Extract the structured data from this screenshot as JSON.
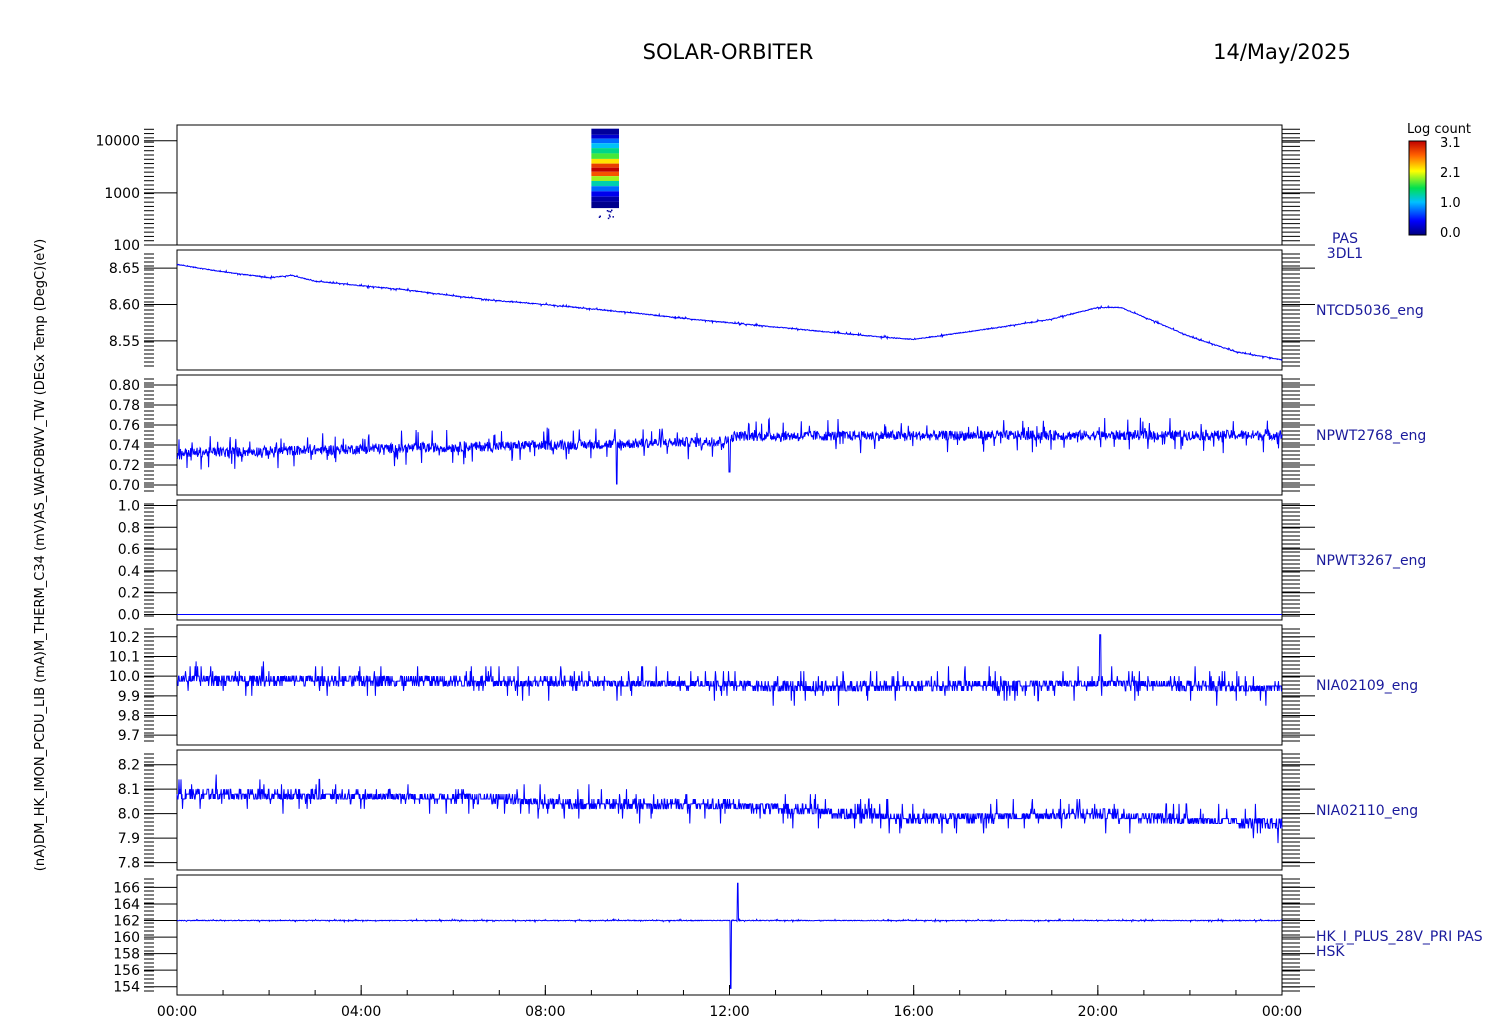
{
  "header": {
    "title": "SOLAR-ORBITER",
    "date": "14/May/2025"
  },
  "colorbar": {
    "title": "Log count",
    "ticks": [
      "3.1",
      "2.1",
      "1.0",
      "0.0"
    ],
    "range": [
      0.0,
      3.1
    ]
  },
  "left_axis_label": "(nA)DM_HK_IMON_PCDU_LIB (mA)M_THERM_C34 (mV)AS_WAFOBWV_TW (DEGx Temp (DegC)(eV)",
  "x_ticks": [
    "00:00",
    "04:00",
    "08:00",
    "12:00",
    "16:00",
    "20:00",
    "00:00"
  ],
  "colors": {
    "trace": "#0000ff",
    "label": "#1a1a9c",
    "axis": "#000000"
  },
  "chart_data": [
    {
      "type": "heatmap",
      "panel": "pas",
      "side_label": [
        "PAS",
        "3DL1"
      ],
      "yscale": "log",
      "ylim": [
        100,
        20000
      ],
      "y_ticks": [
        "10000",
        "1000",
        "100"
      ],
      "y_tick_values": [
        10000,
        1000,
        100
      ],
      "x_hours": [
        9.0,
        9.6
      ],
      "bins": [
        {
          "e": 14000,
          "v": 0.1
        },
        {
          "e": 12000,
          "v": 0.3
        },
        {
          "e": 10000,
          "v": 0.8
        },
        {
          "e": 8000,
          "v": 1.1
        },
        {
          "e": 6500,
          "v": 1.4
        },
        {
          "e": 5000,
          "v": 1.7
        },
        {
          "e": 4000,
          "v": 2.2
        },
        {
          "e": 3300,
          "v": 2.8
        },
        {
          "e": 2800,
          "v": 3.1
        },
        {
          "e": 2300,
          "v": 2.7
        },
        {
          "e": 1900,
          "v": 1.9
        },
        {
          "e": 1500,
          "v": 1.3
        },
        {
          "e": 1200,
          "v": 0.8
        },
        {
          "e": 950,
          "v": 0.4
        },
        {
          "e": 750,
          "v": 0.15
        },
        {
          "e": 600,
          "v": 0.05
        }
      ]
    },
    {
      "type": "line",
      "panel": "ntcd",
      "side_label": [
        "NTCD5036_eng"
      ],
      "ylim": [
        8.51,
        8.675
      ],
      "y_ticks": [
        "8.65",
        "8.60",
        "8.55"
      ],
      "y_tick_values": [
        8.65,
        8.6,
        8.55
      ],
      "x": [
        0,
        1,
        2,
        2.5,
        3,
        4,
        5,
        6,
        7,
        8,
        9,
        10,
        11,
        12,
        13,
        14,
        15,
        16,
        17,
        18,
        19,
        20,
        20.5,
        21,
        22,
        23,
        24
      ],
      "y": [
        8.655,
        8.645,
        8.637,
        8.64,
        8.632,
        8.626,
        8.62,
        8.612,
        8.605,
        8.6,
        8.594,
        8.588,
        8.581,
        8.575,
        8.569,
        8.563,
        8.557,
        8.552,
        8.561,
        8.57,
        8.58,
        8.596,
        8.596,
        8.583,
        8.556,
        8.535,
        8.524
      ],
      "noise": 0.002
    },
    {
      "type": "line",
      "panel": "npwt2768",
      "side_label": [
        "NPWT2768_eng"
      ],
      "ylim": [
        0.69,
        0.81
      ],
      "y_ticks": [
        "0.80",
        "0.78",
        "0.76",
        "0.74",
        "0.72",
        "0.70"
      ],
      "y_tick_values": [
        0.8,
        0.78,
        0.76,
        0.74,
        0.72,
        0.7
      ],
      "x": [
        0,
        5,
        9.5,
        12,
        12.1,
        24
      ],
      "y": [
        0.732,
        0.737,
        0.741,
        0.744,
        0.749,
        0.75
      ],
      "noise": 0.018,
      "dips": [
        {
          "x": 9.55,
          "y": 0.701
        },
        {
          "x": 12.0,
          "y": 0.713
        }
      ]
    },
    {
      "type": "line",
      "panel": "npwt3267",
      "side_label": [
        "NPWT3267_eng"
      ],
      "ylim": [
        -0.05,
        1.05
      ],
      "y_ticks": [
        "1.0",
        "0.8",
        "0.6",
        "0.4",
        "0.2",
        "0.0"
      ],
      "y_tick_values": [
        1.0,
        0.8,
        0.6,
        0.4,
        0.2,
        0.0
      ],
      "x": [
        0,
        24
      ],
      "y": [
        0.0,
        0.0
      ],
      "noise": 0.0
    },
    {
      "type": "line",
      "panel": "nia02109",
      "side_label": [
        "NIA02109_eng"
      ],
      "ylim": [
        9.65,
        10.26
      ],
      "y_ticks": [
        "10.2",
        "10.1",
        "10.0",
        "9.9",
        "9.8",
        "9.7"
      ],
      "y_tick_values": [
        10.2,
        10.1,
        10.0,
        9.9,
        9.8,
        9.7
      ],
      "x": [
        0,
        6,
        10,
        14,
        18,
        20,
        24
      ],
      "y": [
        9.985,
        9.975,
        9.965,
        9.945,
        9.955,
        9.965,
        9.935
      ],
      "noise": 0.09,
      "quantum": 0.025,
      "spikes": [
        {
          "x": 20.05,
          "y": 10.21
        }
      ]
    },
    {
      "type": "line",
      "panel": "nia02110",
      "side_label": [
        "NIA02110_eng"
      ],
      "ylim": [
        7.77,
        8.26
      ],
      "y_ticks": [
        "8.2",
        "8.1",
        "8.0",
        "7.9",
        "7.8"
      ],
      "y_tick_values": [
        8.2,
        8.1,
        8.0,
        7.9,
        7.8
      ],
      "x": [
        0,
        3,
        7,
        8,
        12,
        16,
        20,
        24
      ],
      "y": [
        8.08,
        8.075,
        8.065,
        8.04,
        8.035,
        7.98,
        8.0,
        7.955
      ],
      "noise": 0.075,
      "quantum": 0.02
    },
    {
      "type": "line",
      "panel": "hk28v",
      "side_label": [
        "HK_I_PLUS_28V_PRI PAS",
        "HSK"
      ],
      "ylim": [
        153,
        167.5
      ],
      "y_ticks": [
        "166",
        "164",
        "162",
        "160",
        "158",
        "156",
        "154"
      ],
      "y_tick_values": [
        166,
        164,
        162,
        160,
        158,
        156,
        154
      ],
      "x": [
        0,
        24
      ],
      "y": [
        162.0,
        162.0
      ],
      "noise": 0.15,
      "spikes": [
        {
          "x": 12.03,
          "y": 153.8
        },
        {
          "x": 12.18,
          "y": 166.5
        }
      ]
    }
  ]
}
